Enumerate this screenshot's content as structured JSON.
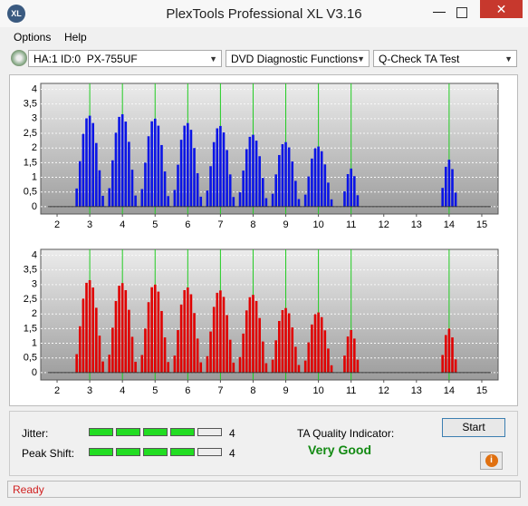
{
  "window": {
    "title": "PlexTools Professional XL V3.16",
    "menu": [
      "Options",
      "Help"
    ],
    "selectors": [
      "HA:1 ID:0  PX-755UF",
      "DVD Diagnostic Functions",
      "Q-Check TA Test"
    ]
  },
  "chart_data": [
    {
      "type": "bar",
      "color": "#0a14e6",
      "x": [
        2.6,
        2.7,
        2.8,
        2.9,
        3,
        3.1,
        3.2,
        3.3,
        3.4,
        3.6,
        3.7,
        3.8,
        3.9,
        4,
        4.1,
        4.2,
        4.3,
        4.4,
        4.6,
        4.7,
        4.8,
        4.9,
        5,
        5.1,
        5.2,
        5.3,
        5.4,
        5.6,
        5.7,
        5.8,
        5.9,
        6,
        6.1,
        6.2,
        6.3,
        6.4,
        6.6,
        6.7,
        6.8,
        6.9,
        7,
        7.1,
        7.2,
        7.3,
        7.4,
        7.6,
        7.7,
        7.8,
        7.9,
        8,
        8.1,
        8.2,
        8.3,
        8.4,
        8.6,
        8.7,
        8.8,
        8.9,
        9,
        9.1,
        9.2,
        9.3,
        9.4,
        9.6,
        9.7,
        9.8,
        9.9,
        10,
        10.1,
        10.2,
        10.3,
        10.4,
        10.8,
        10.9,
        11,
        11.1,
        11.2,
        13.8,
        13.9,
        14,
        14.1,
        14.2
      ],
      "values": [
        0.62,
        1.55,
        2.48,
        3.01,
        3.1,
        2.85,
        2.17,
        1.24,
        0.37,
        0.63,
        1.58,
        2.52,
        3.06,
        3.15,
        2.9,
        2.21,
        1.26,
        0.38,
        0.6,
        1.5,
        2.4,
        2.91,
        3,
        2.76,
        2.1,
        1.2,
        0.36,
        0.57,
        1.43,
        2.28,
        2.76,
        2.85,
        2.62,
        2,
        1.14,
        0.34,
        0.55,
        1.38,
        2.2,
        2.67,
        2.75,
        2.53,
        1.93,
        1.1,
        0.33,
        0.49,
        1.23,
        1.96,
        2.38,
        2.45,
        2.25,
        1.72,
        0.98,
        0.29,
        0.44,
        1.1,
        1.76,
        2.13,
        2.2,
        2.02,
        1.54,
        0.88,
        0.26,
        0.41,
        1.03,
        1.64,
        1.99,
        2.05,
        1.89,
        1.44,
        0.82,
        0.25,
        0.52,
        1.11,
        1.3,
        1.04,
        0.39,
        0.64,
        1.36,
        1.6,
        1.28,
        0.48
      ],
      "xlim": [
        1.5,
        15.5
      ],
      "xticks": [
        2,
        3,
        4,
        5,
        6,
        7,
        8,
        9,
        10,
        11,
        12,
        13,
        14,
        15
      ],
      "ylim": [
        -0.25,
        4.2
      ],
      "yticks": [
        0,
        {
          "value": 0.5,
          "label": "0,5"
        },
        1,
        {
          "value": 1.5,
          "label": "1,5"
        },
        2,
        {
          "value": 2.5,
          "label": "2,5"
        },
        3,
        {
          "value": 3.5,
          "label": "3,5"
        },
        4
      ],
      "markers": [
        3,
        4,
        5,
        6,
        7,
        8,
        9,
        10,
        11,
        14
      ],
      "marker_color": "#22cc22",
      "grid": true
    },
    {
      "type": "bar",
      "color": "#e00000",
      "x": [
        2.6,
        2.7,
        2.8,
        2.9,
        3,
        3.1,
        3.2,
        3.3,
        3.4,
        3.6,
        3.7,
        3.8,
        3.9,
        4,
        4.1,
        4.2,
        4.3,
        4.4,
        4.6,
        4.7,
        4.8,
        4.9,
        5,
        5.1,
        5.2,
        5.3,
        5.4,
        5.6,
        5.7,
        5.8,
        5.9,
        6,
        6.1,
        6.2,
        6.3,
        6.4,
        6.6,
        6.7,
        6.8,
        6.9,
        7,
        7.1,
        7.2,
        7.3,
        7.4,
        7.6,
        7.7,
        7.8,
        7.9,
        8,
        8.1,
        8.2,
        8.3,
        8.4,
        8.6,
        8.7,
        8.8,
        8.9,
        9,
        9.1,
        9.2,
        9.3,
        9.4,
        9.6,
        9.7,
        9.8,
        9.9,
        10,
        10.1,
        10.2,
        10.3,
        10.4,
        10.8,
        10.9,
        11,
        11.1,
        11.2,
        13.8,
        13.9,
        14,
        14.1,
        14.2
      ],
      "values": [
        0.63,
        1.58,
        2.52,
        3.06,
        3.15,
        2.9,
        2.21,
        1.26,
        0.38,
        0.61,
        1.53,
        2.44,
        2.96,
        3.05,
        2.81,
        2.14,
        1.22,
        0.37,
        0.6,
        1.5,
        2.4,
        2.91,
        3,
        2.76,
        2.1,
        1.2,
        0.36,
        0.58,
        1.45,
        2.32,
        2.81,
        2.9,
        2.67,
        2.03,
        1.16,
        0.35,
        0.56,
        1.4,
        2.24,
        2.72,
        2.8,
        2.58,
        1.96,
        1.12,
        0.34,
        0.53,
        1.33,
        2.12,
        2.57,
        2.65,
        2.44,
        1.86,
        1.06,
        0.32,
        0.44,
        1.1,
        1.76,
        2.13,
        2.2,
        2.02,
        1.54,
        0.88,
        0.26,
        0.41,
        1.03,
        1.64,
        1.99,
        2.05,
        1.89,
        1.44,
        0.82,
        0.25,
        0.58,
        1.23,
        1.45,
        1.16,
        0.44,
        0.6,
        1.28,
        1.5,
        1.2,
        0.45
      ],
      "xlim": [
        1.5,
        15.5
      ],
      "xticks": [
        2,
        3,
        4,
        5,
        6,
        7,
        8,
        9,
        10,
        11,
        12,
        13,
        14,
        15
      ],
      "ylim": [
        -0.25,
        4.2
      ],
      "yticks": [
        0,
        {
          "value": 0.5,
          "label": "0,5"
        },
        1,
        {
          "value": 1.5,
          "label": "1,5"
        },
        2,
        {
          "value": 2.5,
          "label": "2,5"
        },
        3,
        {
          "value": 3.5,
          "label": "3,5"
        },
        4
      ],
      "markers": [
        3,
        4,
        5,
        6,
        7,
        8,
        9,
        10,
        11,
        14
      ],
      "marker_color": "#22cc22",
      "grid": true
    }
  ],
  "results": {
    "jitter": {
      "label": "Jitter:",
      "level": 4,
      "segments": 5
    },
    "peak_shift": {
      "label": "Peak Shift:",
      "level": 4,
      "segments": 5
    },
    "quality": {
      "label": "TA Quality Indicator:",
      "rating": "Very Good"
    },
    "button": "Start"
  },
  "status": "Ready"
}
